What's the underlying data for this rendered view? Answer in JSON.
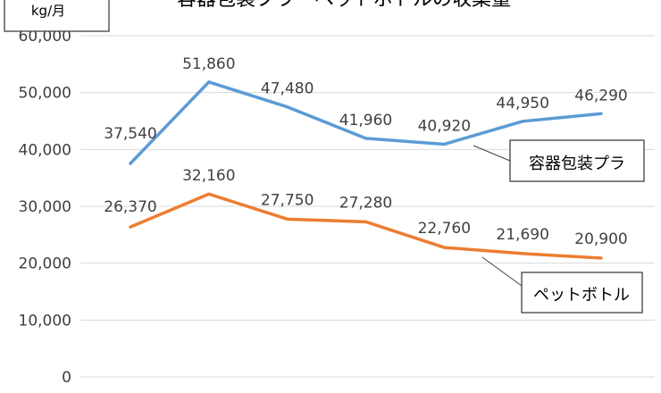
{
  "chart_data": {
    "type": "line",
    "title": "容器包装プラ・ペットボトルの収集量",
    "ylabel": "kg/月",
    "ylim": [
      0,
      60000
    ],
    "yticks": [
      0,
      10000,
      20000,
      30000,
      40000,
      50000,
      60000
    ],
    "ytick_labels": [
      "0",
      "10,000",
      "20,000",
      "30,000",
      "40,000",
      "50,000",
      "60,000"
    ],
    "grid": true,
    "point_count": 7,
    "series": [
      {
        "name": "容器包装プラ",
        "color": "#5b9bd5",
        "values": [
          37540,
          51860,
          47480,
          41960,
          40920,
          44950,
          46290
        ],
        "labels": [
          "37,540",
          "51,860",
          "47,480",
          "41,960",
          "40,920",
          "44,950",
          "46,290"
        ]
      },
      {
        "name": "ペットボトル",
        "color": "#ed7d31",
        "values": [
          26370,
          32160,
          27750,
          27280,
          22760,
          21690,
          20900
        ],
        "labels": [
          "26,370",
          "32,160",
          "27,750",
          "27,280",
          "22,760",
          "21,690",
          "20,900"
        ]
      }
    ]
  }
}
